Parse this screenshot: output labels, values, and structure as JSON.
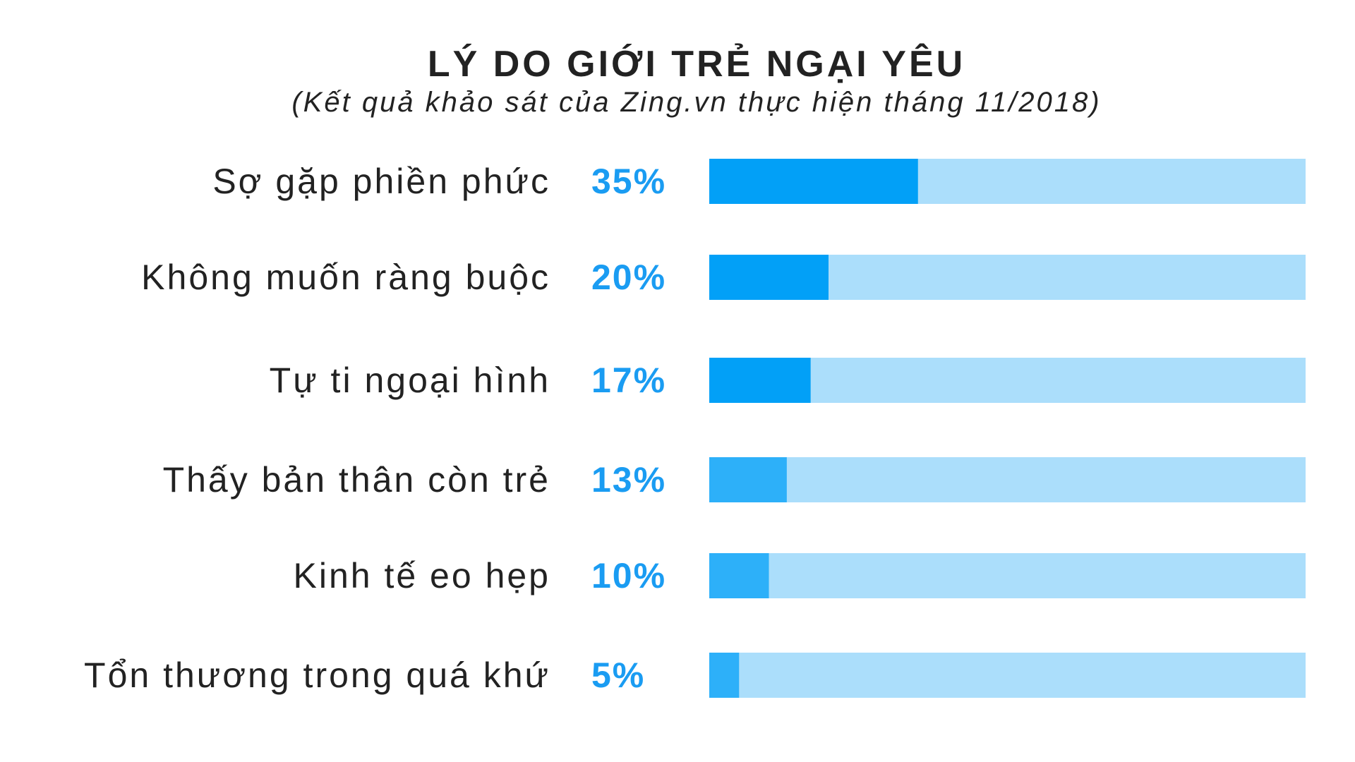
{
  "chart_data": {
    "type": "bar",
    "orientation": "horizontal",
    "title": "LÝ DO GIỚI TRẺ NGẠI YÊU",
    "subtitle": "(Kết quả khảo sát của Zing.vn thực hiện tháng 11/2018)",
    "categories": [
      "Sợ gặp phiền phức",
      "Không muốn ràng buộc",
      "Tự ti ngoại hình",
      "Thấy bản thân còn trẻ",
      "Kinh tế eo hẹp",
      "Tổn thương trong quá khứ"
    ],
    "values": [
      35,
      20,
      17,
      13,
      10,
      5
    ],
    "value_labels": [
      "35%",
      "20%",
      "17%",
      "13%",
      "10%",
      "5%"
    ],
    "xlim": [
      0,
      100
    ],
    "grid": false,
    "legend": "none",
    "colors": {
      "bar_fill": "#02a0f7",
      "bar_fill_light": "#2db0f9",
      "track": "#abdefb",
      "value_text": "#1a9cf2",
      "text": "#222222"
    }
  }
}
